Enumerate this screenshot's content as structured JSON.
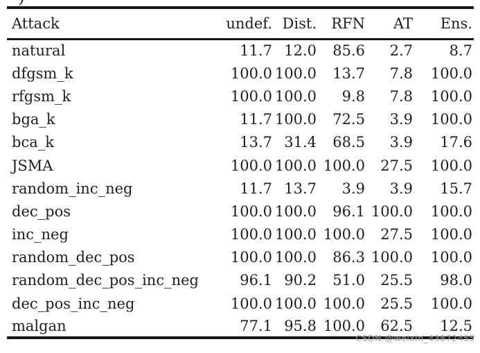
{
  "page": {
    "corner_mark": ")",
    "watermark": "CSDN @weixin_43872455"
  },
  "colors": {
    "text": "#1e1e1e",
    "rule": "#171717",
    "watermark": "#a6a6a6",
    "background": "#ffffff"
  },
  "table": {
    "columns": [
      "Attack",
      "undef.",
      "Dist.",
      "RFN",
      "AT",
      "Ens."
    ],
    "rows": [
      {
        "attack": "natural",
        "values": [
          "11.7",
          "12.0",
          "85.6",
          "2.7",
          "8.7"
        ]
      },
      {
        "attack": "dfgsm_k",
        "values": [
          "100.0",
          "100.0",
          "13.7",
          "7.8",
          "100.0"
        ]
      },
      {
        "attack": "rfgsm_k",
        "values": [
          "100.0",
          "100.0",
          "9.8",
          "7.8",
          "100.0"
        ]
      },
      {
        "attack": "bga_k",
        "values": [
          "11.7",
          "100.0",
          "72.5",
          "3.9",
          "100.0"
        ]
      },
      {
        "attack": "bca_k",
        "values": [
          "13.7",
          "31.4",
          "68.5",
          "3.9",
          "17.6"
        ]
      },
      {
        "attack": "JSMA",
        "values": [
          "100.0",
          "100.0",
          "100.0",
          "27.5",
          "100.0"
        ]
      },
      {
        "attack": "random_inc_neg",
        "values": [
          "11.7",
          "13.7",
          "3.9",
          "3.9",
          "15.7"
        ]
      },
      {
        "attack": "dec_pos",
        "values": [
          "100.0",
          "100.0",
          "96.1",
          "100.0",
          "100.0"
        ]
      },
      {
        "attack": "inc_neg",
        "values": [
          "100.0",
          "100.0",
          "100.0",
          "27.5",
          "100.0"
        ]
      },
      {
        "attack": "random_dec_pos",
        "values": [
          "100.0",
          "100.0",
          "86.3",
          "100.0",
          "100.0"
        ]
      },
      {
        "attack": "random_dec_pos_inc_neg",
        "values": [
          "96.1",
          "90.2",
          "51.0",
          "25.5",
          "98.0"
        ]
      },
      {
        "attack": "dec_pos_inc_neg",
        "values": [
          "100.0",
          "100.0",
          "100.0",
          "25.5",
          "100.0"
        ]
      },
      {
        "attack": "malgan",
        "values": [
          "77.1",
          "95.8",
          "100.0",
          "62.5",
          "12.5"
        ]
      }
    ]
  }
}
